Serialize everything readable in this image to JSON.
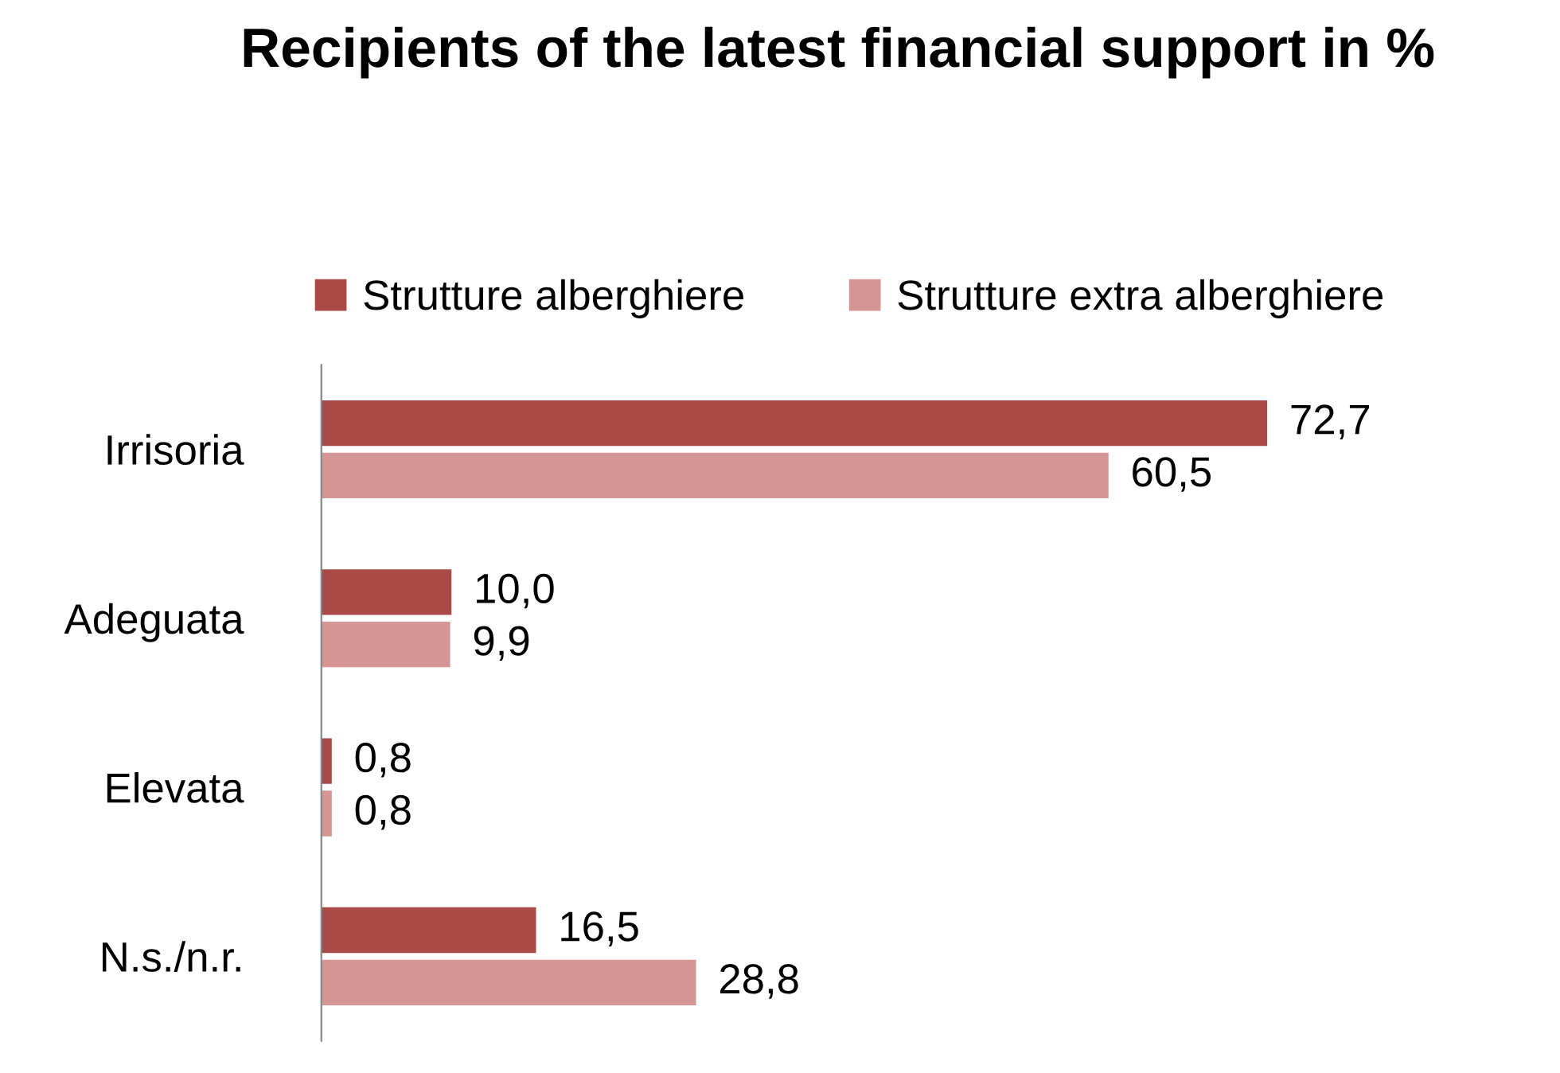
{
  "chart_data": {
    "type": "bar",
    "orientation": "horizontal",
    "title": "Recipients of the latest financial support in %",
    "categories": [
      "Irrisoria",
      "Adeguata",
      "Elevata",
      "N.s./n.r."
    ],
    "series": [
      {
        "name": "Strutture alberghiere",
        "color": "#aa4a47",
        "values": [
          72.7,
          10.0,
          0.8,
          16.5
        ],
        "value_labels": [
          "72,7",
          "10,0",
          "0,8",
          "16,5"
        ]
      },
      {
        "name": "Strutture extra alberghiere",
        "color": "#d49594",
        "values": [
          60.5,
          9.9,
          0.8,
          28.8
        ],
        "value_labels": [
          "60,5",
          "9,9",
          "0,8",
          "28,8"
        ]
      }
    ],
    "legend": "top",
    "grid": false
  }
}
